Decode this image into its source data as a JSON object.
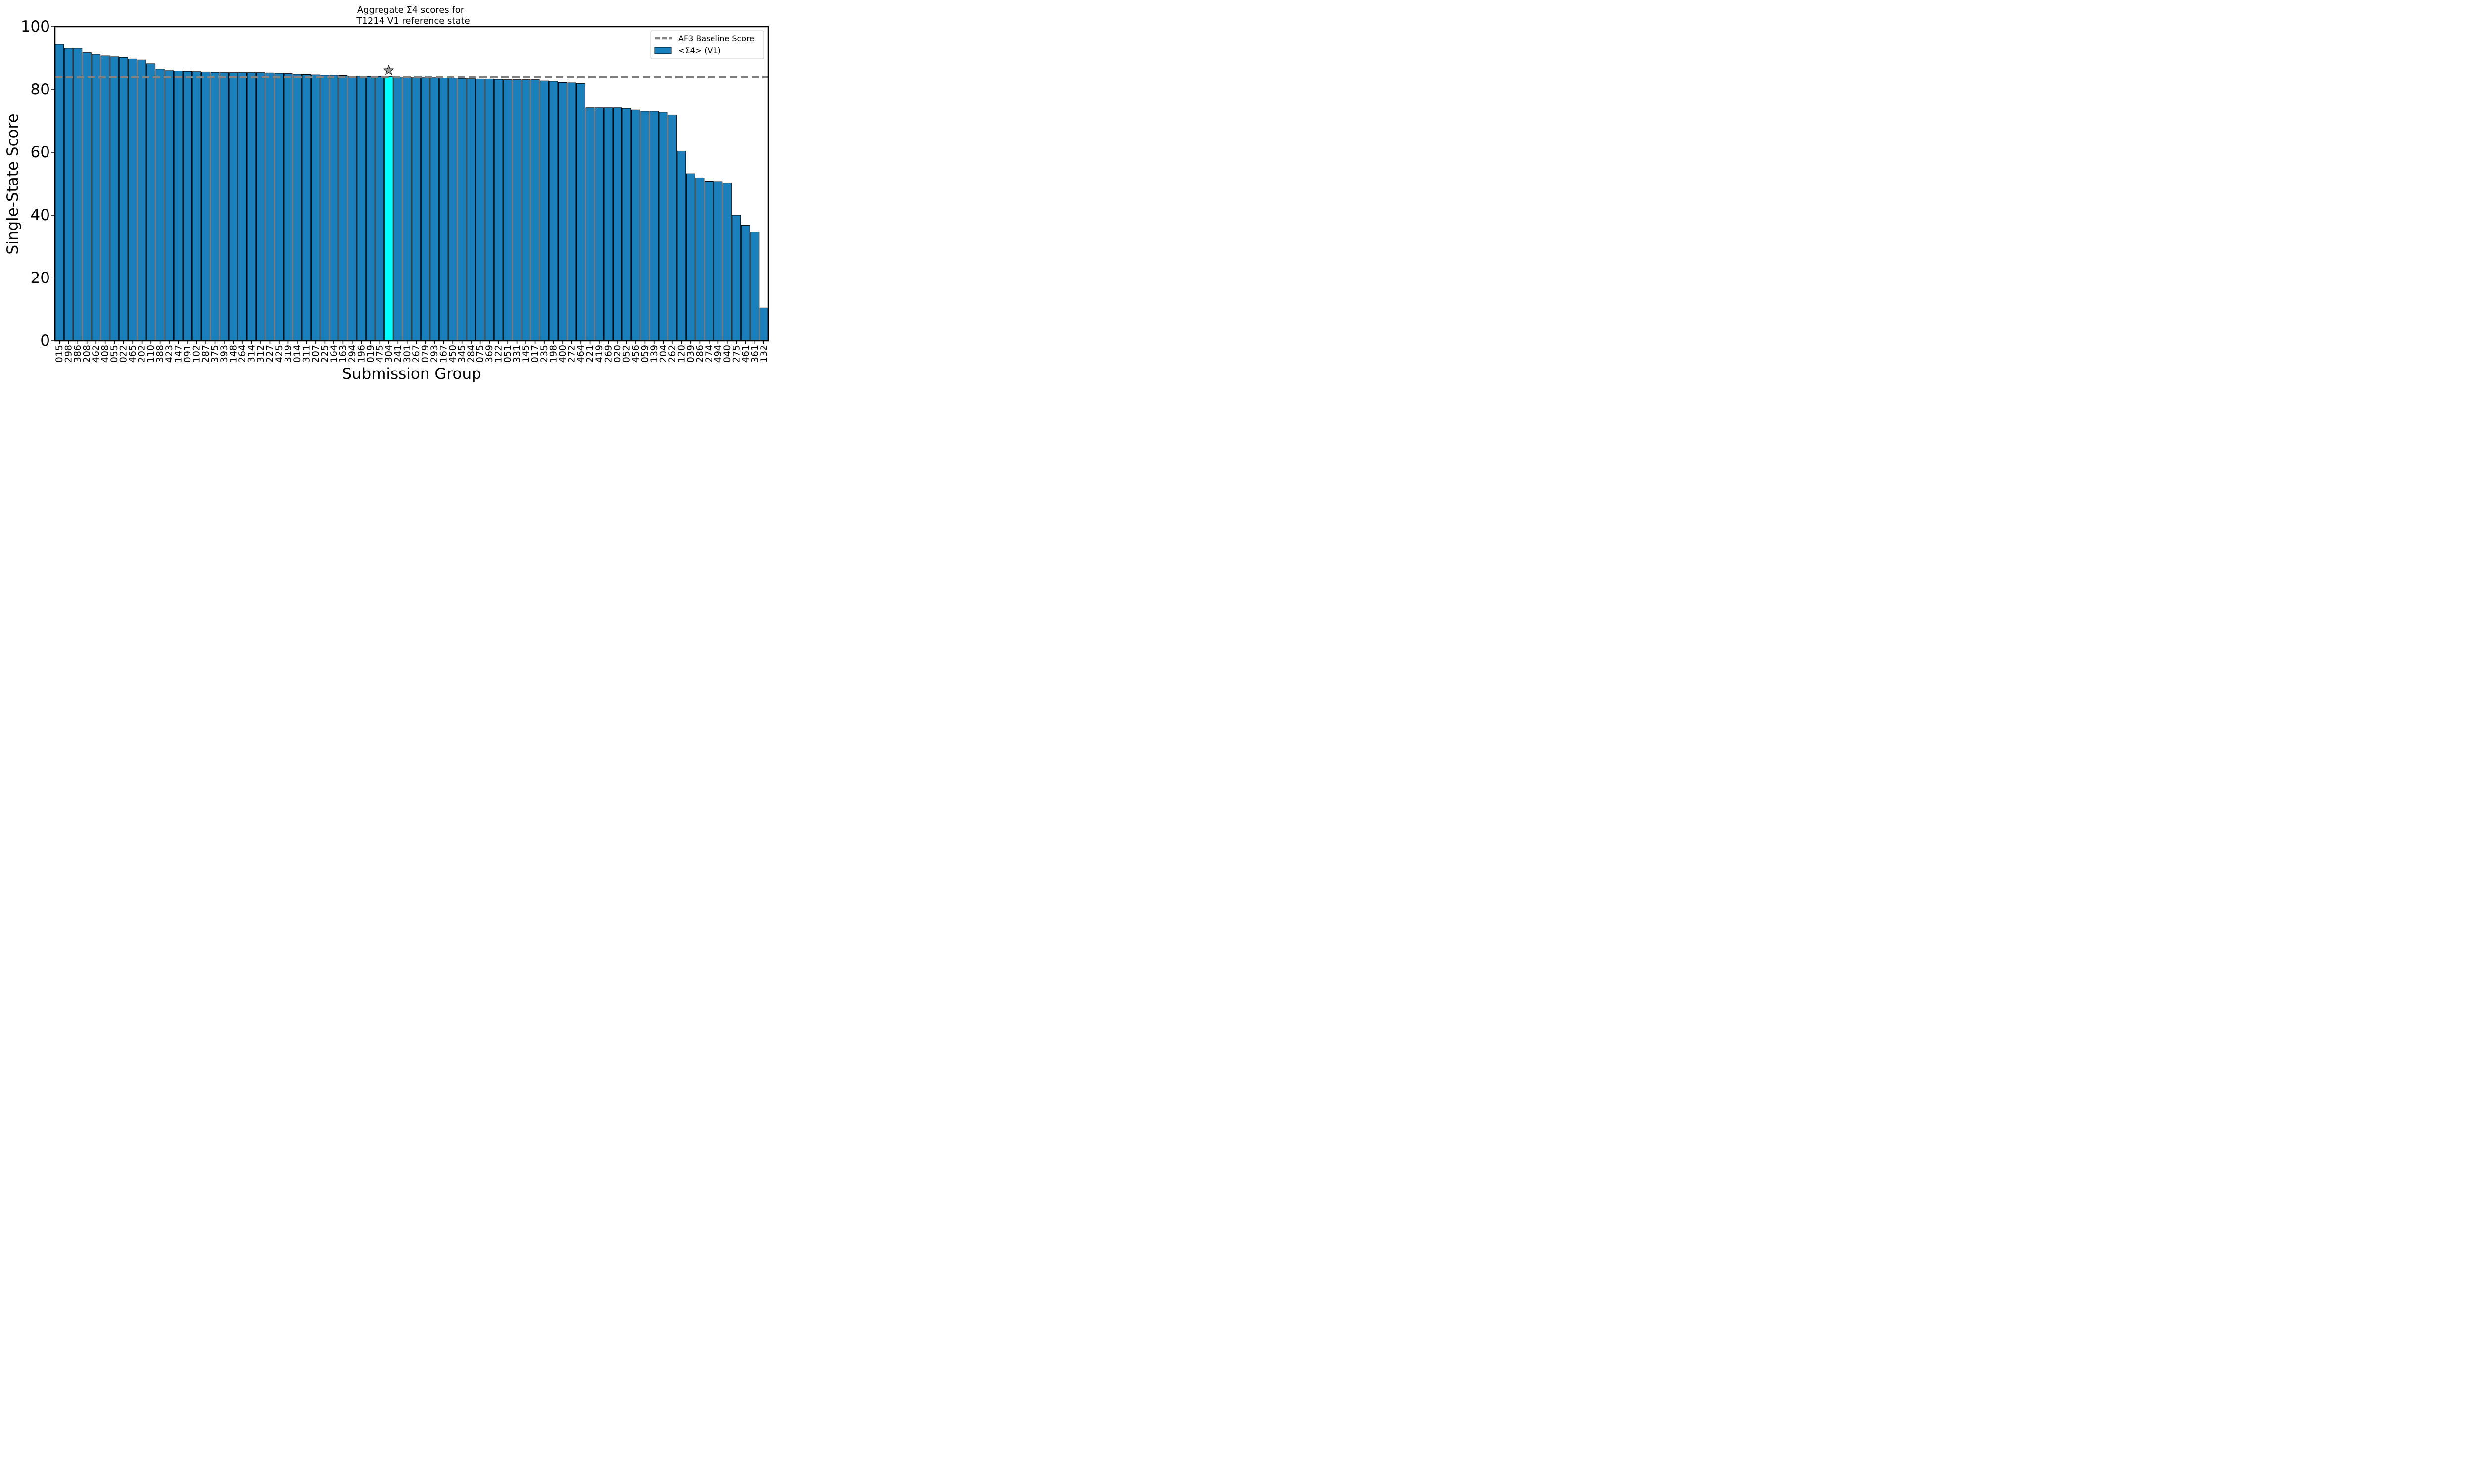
{
  "chart_data": {
    "type": "bar",
    "title_line1": "Aggregate Σ4 scores for",
    "title_line2": "T1214 V1 reference state",
    "xlabel": "Submission Group",
    "ylabel": "Single-State Score",
    "ylim": [
      0,
      100
    ],
    "yticks": [
      0,
      20,
      40,
      60,
      80,
      100
    ],
    "grid": false,
    "legend_position": "top-right",
    "baseline": {
      "name": "AF3 Baseline Score",
      "value": 84,
      "color": "#808080"
    },
    "bar_series_name": "<Σ4> (V1)",
    "bar_color": "#1a80bb",
    "highlight_color": "#00ffff",
    "highlight_category": "304",
    "categories": [
      "015",
      "298",
      "386",
      "208",
      "462",
      "408",
      "055",
      "022",
      "465",
      "202",
      "110",
      "388",
      "423",
      "147",
      "091",
      "102",
      "287",
      "375",
      "393",
      "148",
      "264",
      "314",
      "312",
      "227",
      "425",
      "319",
      "014",
      "311",
      "207",
      "225",
      "164",
      "163",
      "294",
      "196",
      "019",
      "475",
      "304",
      "241",
      "301",
      "267",
      "079",
      "293",
      "167",
      "450",
      "345",
      "284",
      "075",
      "369",
      "122",
      "051",
      "331",
      "145",
      "017",
      "235",
      "198",
      "400",
      "272",
      "464",
      "221",
      "419",
      "269",
      "020",
      "052",
      "456",
      "059",
      "139",
      "204",
      "262",
      "120",
      "039",
      "286",
      "274",
      "494",
      "040",
      "275",
      "461",
      "361",
      "132"
    ],
    "values": [
      94.5,
      93.1,
      93.1,
      91.7,
      91.2,
      90.7,
      90.4,
      90.2,
      89.7,
      89.4,
      88.2,
      86.5,
      86.0,
      85.9,
      85.8,
      85.7,
      85.6,
      85.5,
      85.4,
      85.4,
      85.4,
      85.4,
      85.4,
      85.3,
      85.2,
      85.1,
      84.9,
      84.8,
      84.7,
      84.6,
      84.6,
      84.5,
      84.3,
      84.3,
      84.2,
      84.2,
      84.2,
      84.0,
      83.9,
      83.8,
      83.8,
      83.8,
      83.7,
      83.7,
      83.6,
      83.5,
      83.4,
      83.4,
      83.3,
      83.2,
      83.2,
      83.2,
      83.2,
      82.8,
      82.7,
      82.3,
      82.2,
      82.0,
      74.2,
      74.2,
      74.2,
      74.2,
      74.0,
      73.5,
      73.1,
      73.1,
      72.8,
      71.9,
      60.4,
      53.2,
      51.9,
      50.8,
      50.7,
      50.3,
      40.0,
      36.8,
      34.6,
      10.5
    ]
  }
}
